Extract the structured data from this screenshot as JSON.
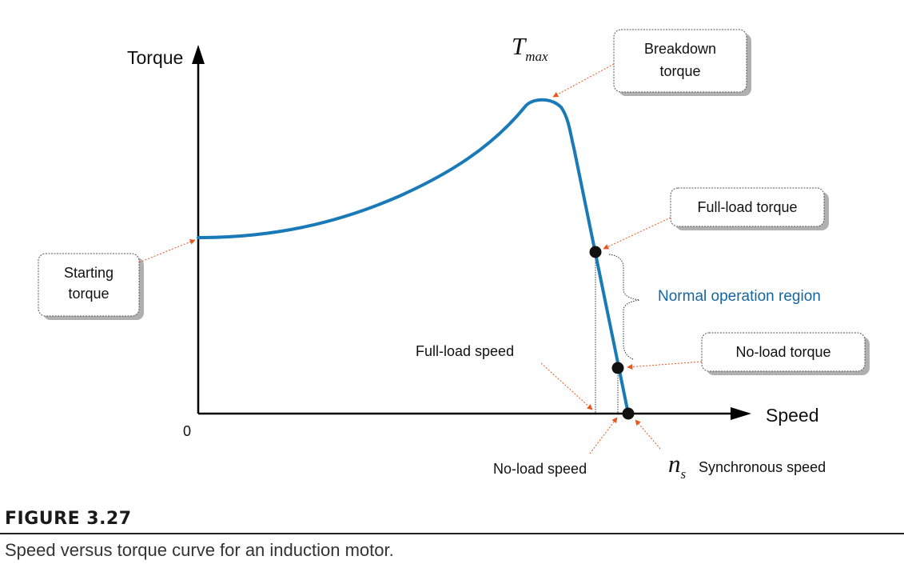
{
  "figure": {
    "label": "FIGURE 3.27",
    "caption": "Speed versus torque curve for an induction motor."
  },
  "axes": {
    "y_title": "Torque",
    "x_title": "Speed",
    "origin": "0"
  },
  "annotations": {
    "tmax_main": "T",
    "tmax_sub": "max",
    "breakdown_line1": "Breakdown",
    "breakdown_line2": "torque",
    "starting_line1": "Starting",
    "starting_line2": "torque",
    "full_load_torque": "Full-load torque",
    "normal_region": "Normal operation region",
    "no_load_torque": "No-load torque",
    "full_load_speed": "Full-load speed",
    "no_load_speed": "No-load speed",
    "ns_main": "n",
    "ns_sub": "s",
    "synchronous_speed": "Synchronous speed"
  },
  "colors": {
    "curve": "#1a7ab8",
    "arrow": "#e8571e",
    "region_text": "#1565a0",
    "box_border": "#555555",
    "box_shadow": "#aaaaaa"
  }
}
